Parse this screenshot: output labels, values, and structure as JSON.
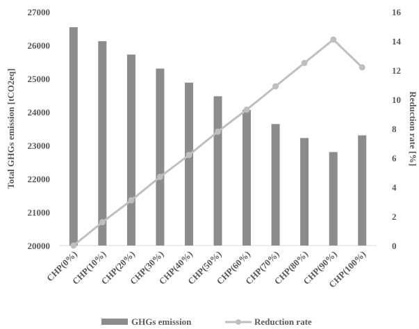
{
  "chart_data": {
    "type": "bar",
    "categories": [
      "CHP(0%)",
      "CHP(10%)",
      "CHP(20%)",
      "CHP(30%)",
      "CHP(40%)",
      "CHP(50%)",
      "CHP(60%)",
      "CHP(70%)",
      "CHP(80%)",
      "CHP(90%)",
      "CHP(100%)"
    ],
    "series": [
      {
        "name": "GHGs emission",
        "type": "bar",
        "axis": "left",
        "color": "#8c8c8c",
        "values": [
          26540,
          26120,
          25720,
          25300,
          24880,
          24470,
          24060,
          23640,
          23220,
          22800,
          23300
        ]
      },
      {
        "name": "Reduction rate",
        "type": "line",
        "axis": "right",
        "color": "#bfbfbf",
        "values": [
          0.0,
          1.6,
          3.1,
          4.7,
          6.2,
          7.8,
          9.3,
          10.9,
          12.5,
          14.1,
          12.2
        ]
      }
    ],
    "ylabel": "Total GHGs emission [tCO2eq]",
    "y2label": "Reduction rate [%]",
    "ylim": [
      20000,
      27000
    ],
    "y2lim": [
      0,
      16
    ],
    "yticks": [
      "20000",
      "21000",
      "22000",
      "23000",
      "24000",
      "25000",
      "26000",
      "27000"
    ],
    "y2ticks": [
      "0",
      "2",
      "4",
      "6",
      "8",
      "10",
      "12",
      "14",
      "16"
    ],
    "grid": false,
    "legend": "bottom"
  }
}
